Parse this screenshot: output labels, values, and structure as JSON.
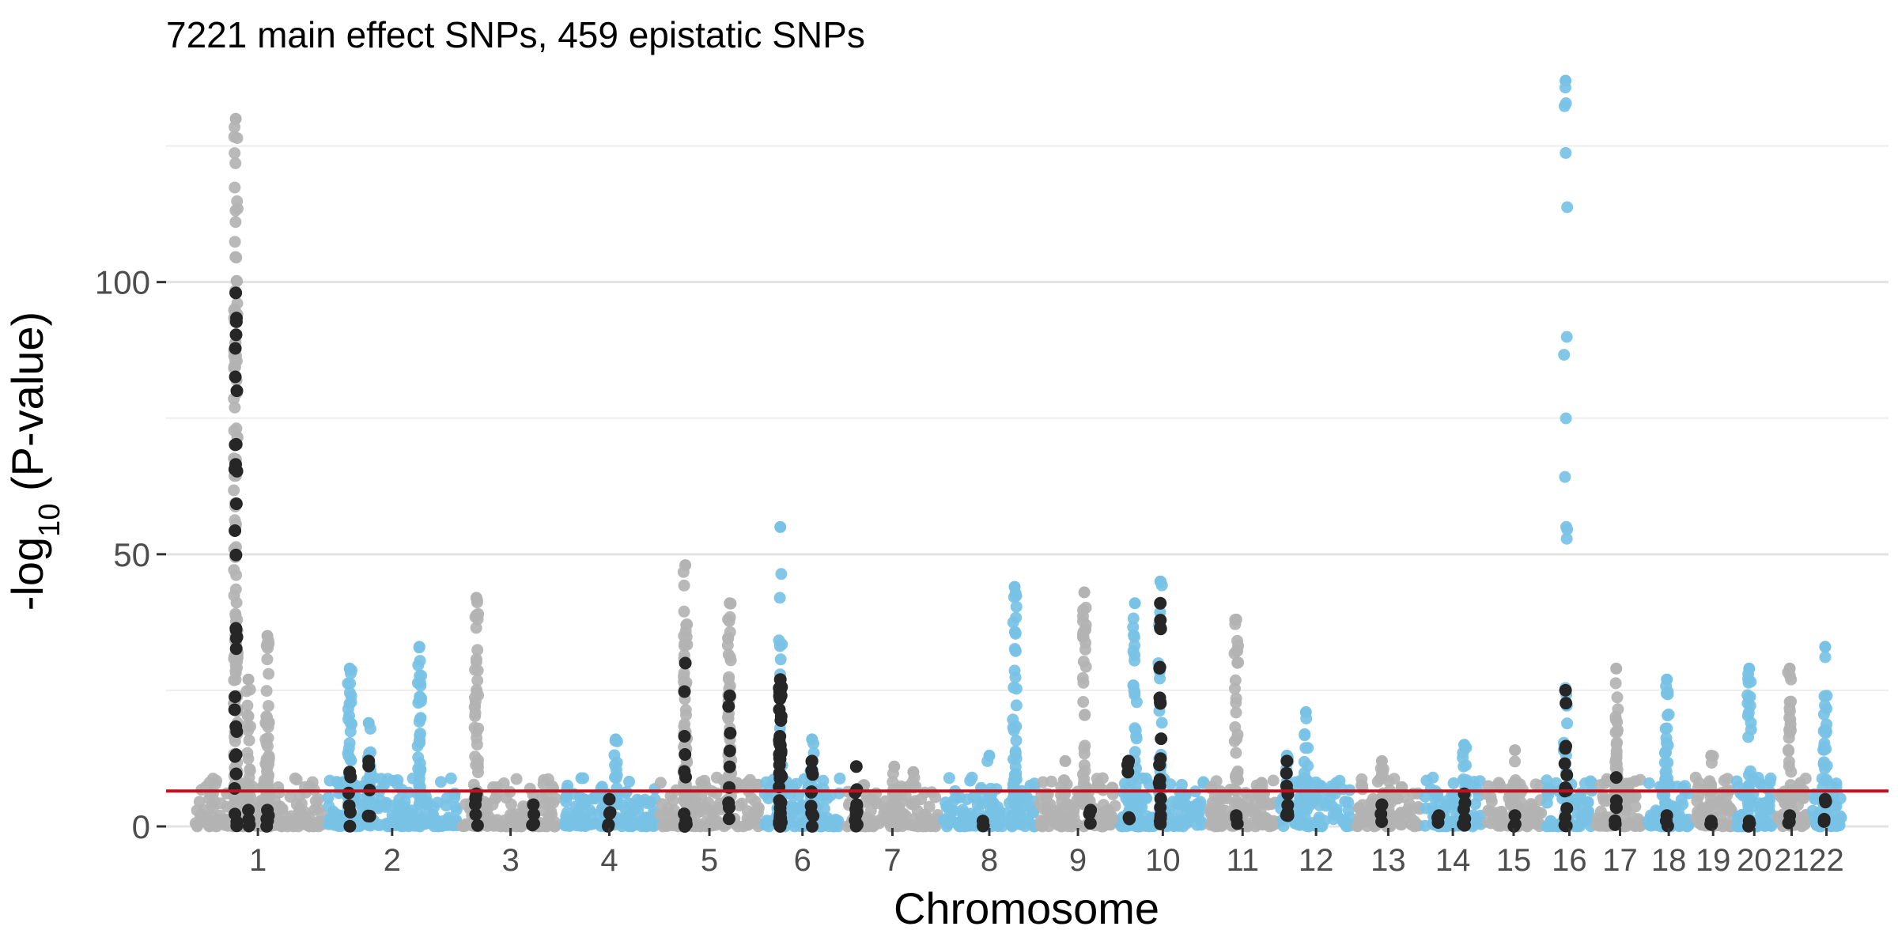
{
  "chart_data": {
    "type": "scatter",
    "title": "7221 main effect SNPs, 459 epistatic SNPs",
    "xlabel": "Chromosome",
    "ylabel_prefix": "-log",
    "ylabel_sub": "10",
    "ylabel_suffix": " (P-value)",
    "ylim": [
      0,
      137
    ],
    "y_ticks": [
      0,
      50,
      100
    ],
    "y_minor_ticks": [
      25,
      75,
      125
    ],
    "grid": true,
    "legend": "none",
    "threshold": {
      "value": 6.5,
      "color": "#c0111f"
    },
    "colors": {
      "odd": "#b3b3b3",
      "even": "#78c2e6",
      "epistatic": "#262626"
    },
    "chromosomes": [
      {
        "label": "1",
        "range": [
          0.7,
          1.75
        ],
        "peaks": [
          [
            1.05,
            130,
            120
          ],
          [
            1.15,
            27,
            20
          ],
          [
            1.3,
            35,
            60
          ]
        ],
        "epi": [
          [
            1.05,
            98,
            30
          ],
          [
            1.15,
            3,
            4
          ],
          [
            1.3,
            3,
            4
          ]
        ]
      },
      {
        "label": "2",
        "range": [
          1.75,
          2.82
        ],
        "peaks": [
          [
            1.95,
            29,
            30
          ],
          [
            2.1,
            19,
            20
          ],
          [
            2.5,
            33,
            40
          ]
        ],
        "epi": [
          [
            1.95,
            10,
            5
          ],
          [
            2.1,
            12,
            4
          ]
        ]
      },
      {
        "label": "3",
        "range": [
          2.82,
          3.62
        ],
        "peaks": [
          [
            2.95,
            42,
            40
          ],
          [
            3.4,
            4,
            5
          ]
        ],
        "epi": [
          [
            2.95,
            6,
            5
          ],
          [
            3.4,
            4,
            3
          ]
        ]
      },
      {
        "label": "4",
        "range": [
          3.62,
          4.38
        ],
        "peaks": [
          [
            4.05,
            16,
            20
          ],
          [
            3.8,
            5,
            8
          ]
        ],
        "epi": [
          [
            4.0,
            5,
            4
          ]
        ]
      },
      {
        "label": "5",
        "range": [
          4.38,
          5.2
        ],
        "peaks": [
          [
            4.6,
            48,
            50
          ],
          [
            4.95,
            41,
            40
          ]
        ],
        "epi": [
          [
            4.6,
            30,
            10
          ],
          [
            4.95,
            24,
            8
          ]
        ]
      },
      {
        "label": "6",
        "range": [
          5.2,
          5.85
        ],
        "peaks": [
          [
            5.35,
            55,
            12
          ],
          [
            5.6,
            16,
            15
          ]
        ],
        "epi": [
          [
            5.35,
            27,
            40
          ],
          [
            5.6,
            12,
            10
          ]
        ]
      },
      {
        "label": "7",
        "range": [
          5.85,
          6.62
        ],
        "peaks": [
          [
            6.25,
            11,
            10
          ],
          [
            6.4,
            10,
            4
          ]
        ],
        "epi": [
          [
            5.95,
            11,
            10
          ]
        ]
      },
      {
        "label": "8",
        "range": [
          6.62,
          7.38
        ],
        "peaks": [
          [
            7.2,
            44,
            50
          ],
          [
            7.0,
            13,
            8
          ]
        ],
        "epi": [
          [
            6.95,
            1,
            2
          ]
        ]
      },
      {
        "label": "9",
        "range": [
          7.38,
          8.02
        ],
        "peaks": [
          [
            7.75,
            43,
            40
          ],
          [
            7.6,
            12,
            6
          ]
        ],
        "epi": [
          [
            7.8,
            3,
            2
          ]
        ]
      },
      {
        "label": "10",
        "range": [
          8.02,
          8.72
        ],
        "peaks": [
          [
            8.15,
            41,
            30
          ],
          [
            8.35,
            45,
            25
          ]
        ],
        "epi": [
          [
            8.35,
            41,
            20
          ],
          [
            8.1,
            12,
            4
          ]
        ]
      },
      {
        "label": "11",
        "range": [
          8.72,
          9.28
        ],
        "peaks": [
          [
            8.95,
            38,
            30
          ],
          [
            9.15,
            8,
            5
          ]
        ],
        "epi": [
          [
            8.95,
            2,
            2
          ]
        ]
      },
      {
        "label": "12",
        "range": [
          9.28,
          9.88
        ],
        "peaks": [
          [
            9.5,
            21,
            20
          ],
          [
            9.35,
            13,
            10
          ]
        ],
        "epi": [
          [
            9.35,
            12,
            8
          ]
        ]
      },
      {
        "label": "13",
        "range": [
          9.88,
          10.42
        ],
        "peaks": [
          [
            10.1,
            12,
            12
          ]
        ],
        "epi": [
          [
            10.1,
            4,
            3
          ]
        ]
      },
      {
        "label": "14",
        "range": [
          10.42,
          10.9
        ],
        "peaks": [
          [
            10.75,
            15,
            15
          ]
        ],
        "epi": [
          [
            10.75,
            6,
            5
          ],
          [
            10.55,
            2,
            2
          ]
        ]
      },
      {
        "label": "15",
        "range": [
          10.9,
          11.38
        ],
        "peaks": [
          [
            11.15,
            14,
            10
          ]
        ],
        "epi": [
          [
            11.15,
            2,
            2
          ]
        ]
      },
      {
        "label": "16",
        "range": [
          11.38,
          11.78
        ],
        "peaks": [
          [
            11.55,
            137,
            25
          ]
        ],
        "epi": [
          [
            11.55,
            25,
            15
          ]
        ]
      },
      {
        "label": "17",
        "range": [
          11.78,
          12.18
        ],
        "peaks": [
          [
            11.95,
            29,
            30
          ]
        ],
        "epi": [
          [
            11.95,
            9,
            6
          ]
        ]
      },
      {
        "label": "18",
        "range": [
          12.18,
          12.55
        ],
        "peaks": [
          [
            12.35,
            27,
            30
          ]
        ],
        "epi": [
          [
            12.35,
            2,
            2
          ]
        ]
      },
      {
        "label": "19",
        "range": [
          12.55,
          12.88
        ],
        "peaks": [
          [
            12.7,
            13,
            12
          ]
        ],
        "epi": [
          [
            12.7,
            1,
            2
          ]
        ]
      },
      {
        "label": "20",
        "range": [
          12.88,
          13.2
        ],
        "peaks": [
          [
            13.0,
            29,
            25
          ]
        ],
        "epi": [
          [
            13.0,
            1,
            2
          ]
        ]
      },
      {
        "label": "21",
        "range": [
          13.2,
          13.47
        ],
        "peaks": [
          [
            13.32,
            29,
            30
          ]
        ],
        "epi": [
          [
            13.32,
            2,
            2
          ]
        ]
      },
      {
        "label": "22",
        "range": [
          13.47,
          13.75
        ],
        "peaks": [
          [
            13.6,
            33,
            30
          ]
        ],
        "epi": [
          [
            13.6,
            5,
            4
          ]
        ]
      }
    ]
  }
}
